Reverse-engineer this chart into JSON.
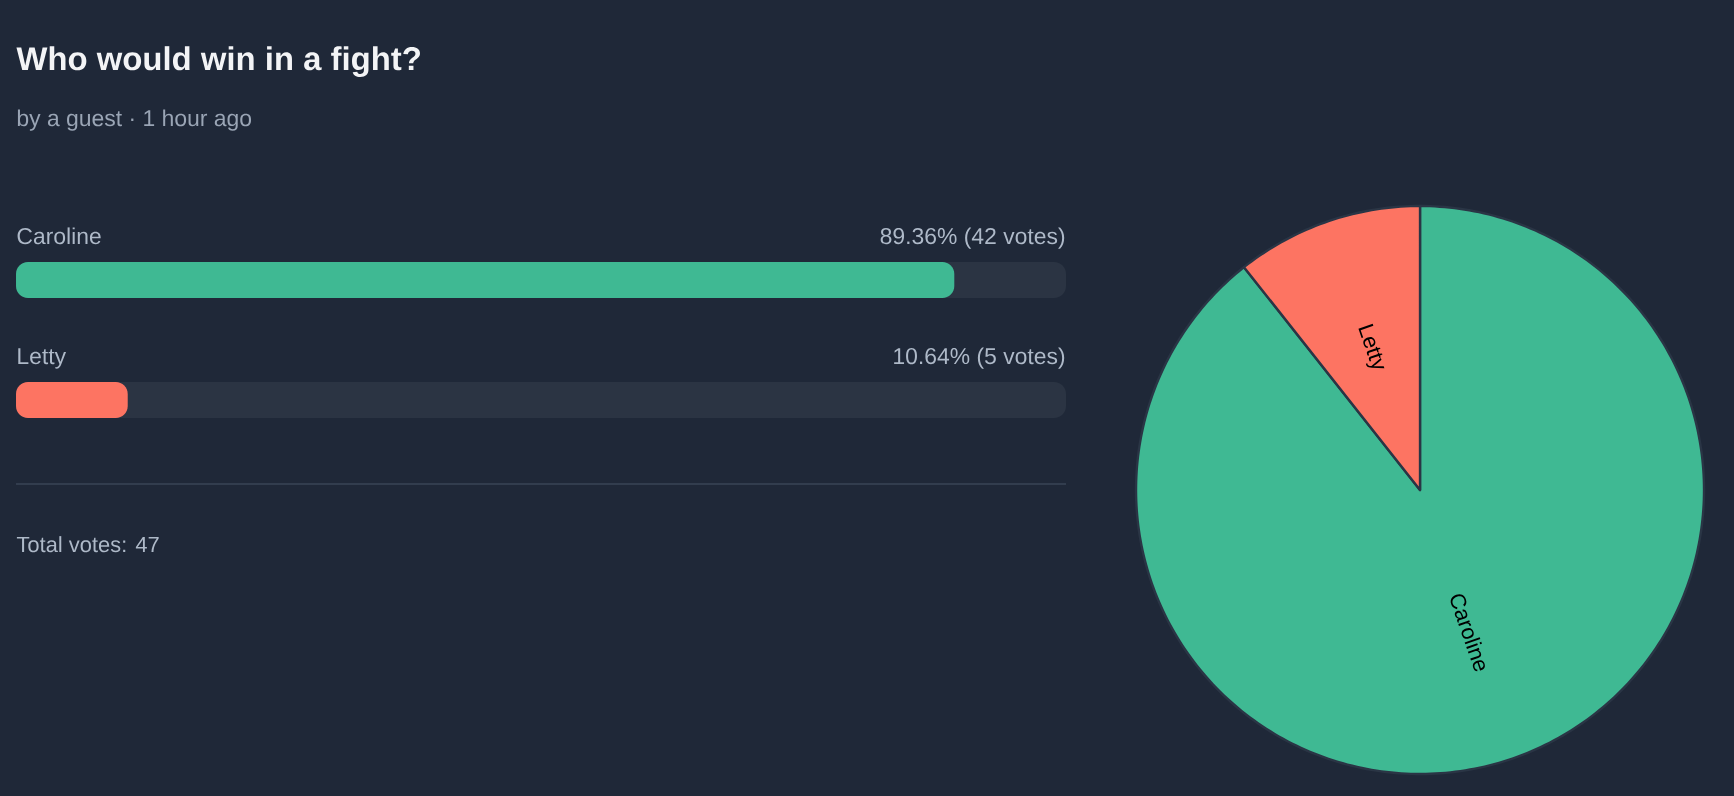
{
  "chart_data": [
    {
      "type": "bar",
      "orientation": "horizontal",
      "title": "Who would win in a fight?",
      "subtitle": "by a guest · 1 hour ago",
      "categories": [
        "Caroline",
        "Letty"
      ],
      "values": [
        89.36,
        10.64
      ],
      "colors": [
        "#3fb993",
        "#fd7462"
      ],
      "value_labels": [
        "89.36% (42 votes)",
        "10.64% (5 votes)"
      ],
      "xlim": [
        0,
        100
      ],
      "tick_labels": "y",
      "annotations": [
        "Total votes: 47"
      ]
    },
    {
      "type": "pie",
      "categories": [
        "Caroline",
        "Letty"
      ],
      "values": [
        89.36,
        10.64
      ],
      "colors": [
        "#3fb993",
        "#fd7462"
      ]
    }
  ]
}
